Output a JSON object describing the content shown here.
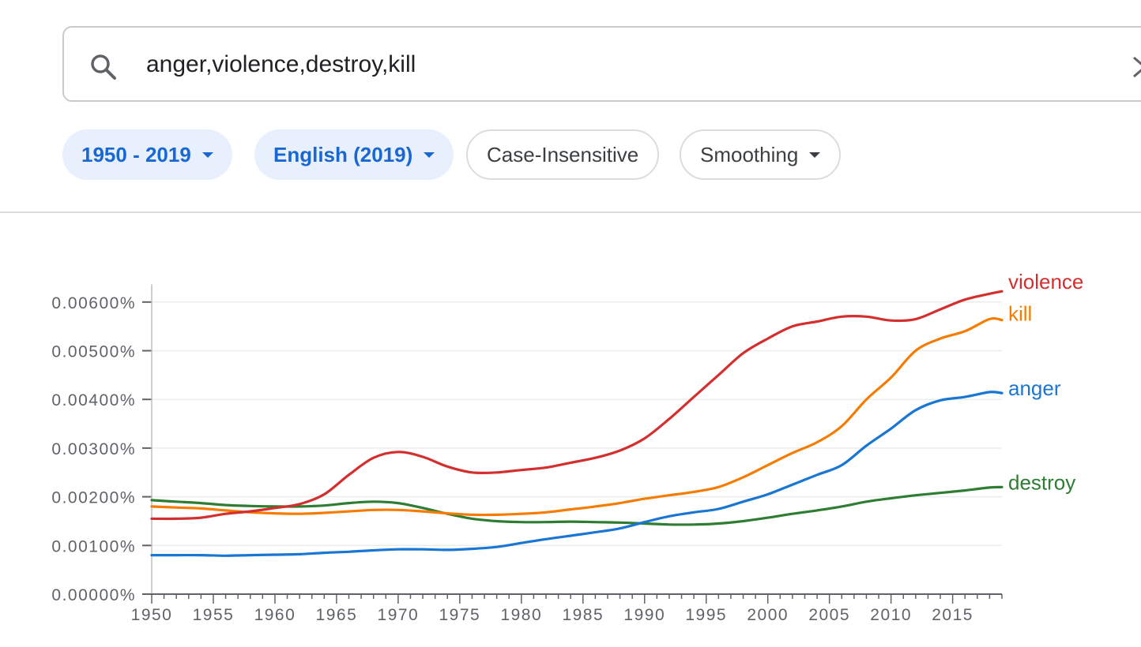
{
  "search": {
    "value": "anger,violence,destroy,kill",
    "icon": "search-icon"
  },
  "chips": [
    {
      "label": "1950 - 2019",
      "style": "filled",
      "dropdown": true
    },
    {
      "label": "English (2019)",
      "style": "filled",
      "dropdown": true
    },
    {
      "label": "Case-Insensitive",
      "style": "outlined",
      "dropdown": false
    },
    {
      "label": "Smoothing",
      "style": "outlined",
      "dropdown": true
    }
  ],
  "chart_data": {
    "type": "line",
    "x": [
      1950,
      1952,
      1954,
      1956,
      1958,
      1960,
      1962,
      1964,
      1966,
      1968,
      1970,
      1972,
      1974,
      1976,
      1978,
      1980,
      1982,
      1984,
      1986,
      1988,
      1990,
      1992,
      1994,
      1996,
      1998,
      2000,
      2002,
      2004,
      2006,
      2008,
      2010,
      2012,
      2014,
      2016,
      2018,
      2019
    ],
    "xlim": [
      1950,
      2019
    ],
    "x_ticks": [
      "1950",
      "1955",
      "1960",
      "1965",
      "1970",
      "1975",
      "1980",
      "1985",
      "1990",
      "1995",
      "2000",
      "2005",
      "2010",
      "2015"
    ],
    "ylim": [
      0,
      0.0062
    ],
    "y_ticks": [
      "0.00000%",
      "0.00100%",
      "0.00200%",
      "0.00300%",
      "0.00400%",
      "0.00500%",
      "0.00600%"
    ],
    "grid": true,
    "series": [
      {
        "name": "violence",
        "color": "#d32f2f",
        "values": [
          0.00155,
          0.00155,
          0.00157,
          0.00165,
          0.0017,
          0.00177,
          0.00185,
          0.00205,
          0.00245,
          0.0028,
          0.00292,
          0.00282,
          0.00262,
          0.0025,
          0.0025,
          0.00255,
          0.0026,
          0.0027,
          0.0028,
          0.00295,
          0.0032,
          0.0036,
          0.00405,
          0.0045,
          0.00495,
          0.00525,
          0.0055,
          0.0056,
          0.0057,
          0.0057,
          0.00562,
          0.00565,
          0.00585,
          0.00605,
          0.00617,
          0.00622
        ]
      },
      {
        "name": "kill",
        "color": "#f57c00",
        "values": [
          0.0018,
          0.00178,
          0.00176,
          0.00172,
          0.00168,
          0.00166,
          0.00165,
          0.00167,
          0.0017,
          0.00173,
          0.00173,
          0.0017,
          0.00166,
          0.00163,
          0.00163,
          0.00165,
          0.00168,
          0.00174,
          0.0018,
          0.00187,
          0.00196,
          0.00203,
          0.0021,
          0.0022,
          0.0024,
          0.00265,
          0.0029,
          0.00312,
          0.00345,
          0.004,
          0.00445,
          0.005,
          0.00525,
          0.0054,
          0.00565,
          0.00563
        ]
      },
      {
        "name": "anger",
        "color": "#1976d2",
        "values": [
          0.0008,
          0.0008,
          0.0008,
          0.00079,
          0.0008,
          0.00081,
          0.00082,
          0.00085,
          0.00087,
          0.0009,
          0.00092,
          0.00092,
          0.00091,
          0.00093,
          0.00097,
          0.00105,
          0.00113,
          0.0012,
          0.00127,
          0.00135,
          0.00148,
          0.0016,
          0.00168,
          0.00175,
          0.0019,
          0.00205,
          0.00225,
          0.00245,
          0.00265,
          0.00305,
          0.0034,
          0.00378,
          0.00398,
          0.00405,
          0.00415,
          0.00413
        ]
      },
      {
        "name": "destroy",
        "color": "#2e7d32",
        "values": [
          0.00193,
          0.0019,
          0.00187,
          0.00183,
          0.00181,
          0.0018,
          0.0018,
          0.00182,
          0.00187,
          0.0019,
          0.00187,
          0.00177,
          0.00165,
          0.00155,
          0.0015,
          0.00148,
          0.00148,
          0.00149,
          0.00148,
          0.00147,
          0.00145,
          0.00143,
          0.00143,
          0.00145,
          0.0015,
          0.00157,
          0.00165,
          0.00172,
          0.0018,
          0.0019,
          0.00197,
          0.00203,
          0.00208,
          0.00213,
          0.00219,
          0.0022
        ]
      }
    ]
  }
}
